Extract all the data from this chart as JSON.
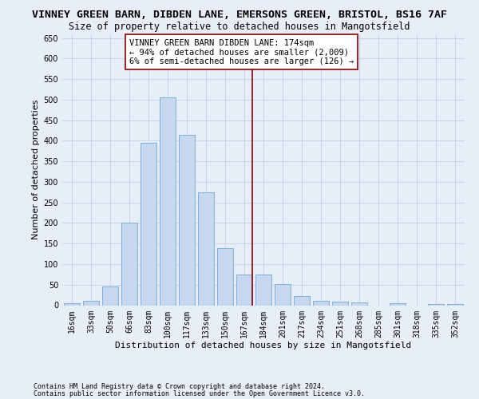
{
  "title": "VINNEY GREEN BARN, DIBDEN LANE, EMERSONS GREEN, BRISTOL, BS16 7AF",
  "subtitle": "Size of property relative to detached houses in Mangotsfield",
  "xlabel": "Distribution of detached houses by size in Mangotsfield",
  "ylabel": "Number of detached properties",
  "categories": [
    "16sqm",
    "33sqm",
    "50sqm",
    "66sqm",
    "83sqm",
    "100sqm",
    "117sqm",
    "133sqm",
    "150sqm",
    "167sqm",
    "184sqm",
    "201sqm",
    "217sqm",
    "234sqm",
    "251sqm",
    "268sqm",
    "285sqm",
    "301sqm",
    "318sqm",
    "335sqm",
    "352sqm"
  ],
  "values": [
    4,
    10,
    45,
    200,
    395,
    505,
    415,
    275,
    138,
    75,
    75,
    52,
    22,
    10,
    8,
    6,
    0,
    5,
    0,
    2,
    2
  ],
  "bar_color": "#c5d8f0",
  "bar_edge_color": "#6aaad4",
  "grid_color": "#c8d4e8",
  "background_color": "#e8eef8",
  "vline_x": 9.41,
  "vline_color": "#8b0000",
  "annotation_title": "VINNEY GREEN BARN DIBDEN LANE: 174sqm",
  "annotation_line1": "← 94% of detached houses are smaller (2,009)",
  "annotation_line2": "6% of semi-detached houses are larger (126) →",
  "footer_line1": "Contains HM Land Registry data © Crown copyright and database right 2024.",
  "footer_line2": "Contains public sector information licensed under the Open Government Licence v3.0.",
  "ylim": [
    0,
    660
  ],
  "yticks": [
    0,
    50,
    100,
    150,
    200,
    250,
    300,
    350,
    400,
    450,
    500,
    550,
    600,
    650
  ],
  "title_fontsize": 9.5,
  "subtitle_fontsize": 8.5,
  "axis_label_fontsize": 8,
  "tick_fontsize": 7,
  "annotation_fontsize": 7.5,
  "footer_fontsize": 6
}
